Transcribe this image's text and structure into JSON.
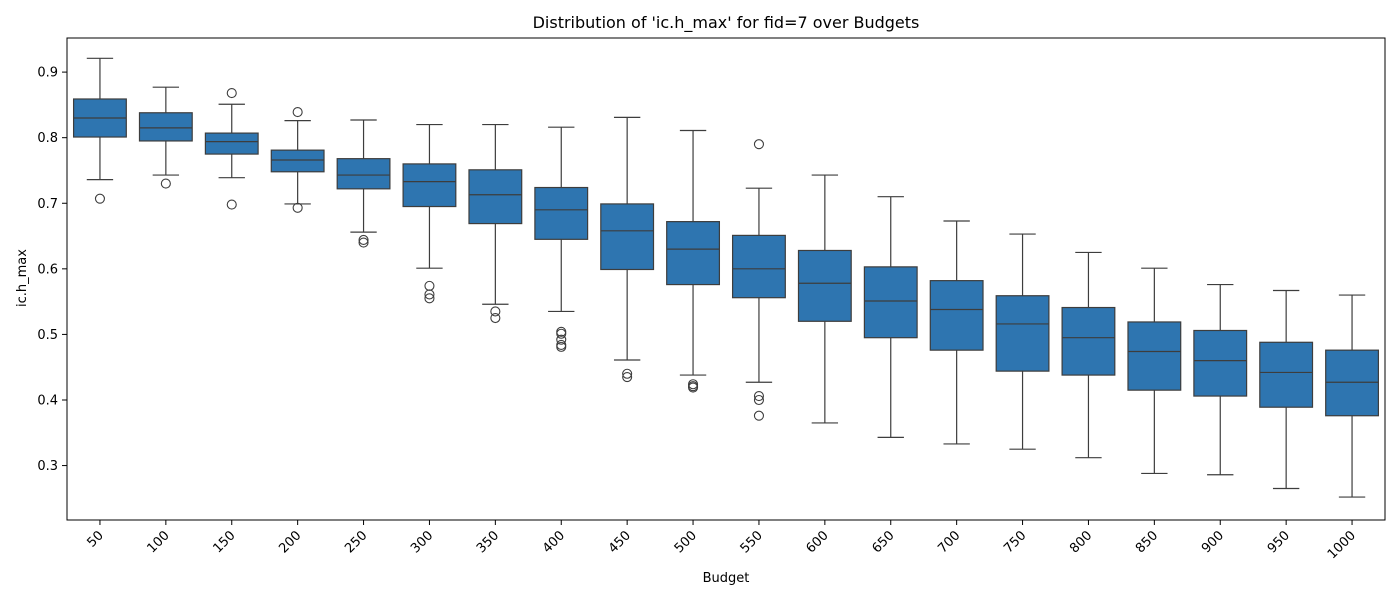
{
  "chart_data": {
    "type": "box",
    "title": "Distribution of 'ic.h_max' for fid=7 over Budgets",
    "xlabel": "Budget",
    "ylabel": "ic.h_max",
    "ylim": [
      0.217,
      0.952
    ],
    "yticks": [
      0.3,
      0.4,
      0.5,
      0.6,
      0.7,
      0.8,
      0.9
    ],
    "ytick_labels": [
      "0.3",
      "0.4",
      "0.5",
      "0.6",
      "0.7",
      "0.8",
      "0.9"
    ],
    "legend": "none",
    "grid": false,
    "color": "#2e75b0",
    "categories": [
      "50",
      "100",
      "150",
      "200",
      "250",
      "300",
      "350",
      "400",
      "450",
      "500",
      "550",
      "600",
      "650",
      "700",
      "750",
      "800",
      "850",
      "900",
      "950",
      "1000"
    ],
    "boxes": [
      {
        "whisker_low": 0.736,
        "q1": 0.801,
        "median": 0.83,
        "q3": 0.859,
        "whisker_high": 0.921,
        "outliers": [
          0.707
        ]
      },
      {
        "whisker_low": 0.743,
        "q1": 0.795,
        "median": 0.815,
        "q3": 0.838,
        "whisker_high": 0.877,
        "outliers": [
          0.73
        ]
      },
      {
        "whisker_low": 0.739,
        "q1": 0.775,
        "median": 0.794,
        "q3": 0.807,
        "whisker_high": 0.851,
        "outliers": [
          0.868,
          0.698
        ]
      },
      {
        "whisker_low": 0.699,
        "q1": 0.748,
        "median": 0.766,
        "q3": 0.781,
        "whisker_high": 0.826,
        "outliers": [
          0.839,
          0.693
        ]
      },
      {
        "whisker_low": 0.656,
        "q1": 0.722,
        "median": 0.743,
        "q3": 0.768,
        "whisker_high": 0.827,
        "outliers": [
          0.644,
          0.64
        ]
      },
      {
        "whisker_low": 0.601,
        "q1": 0.695,
        "median": 0.733,
        "q3": 0.76,
        "whisker_high": 0.82,
        "outliers": [
          0.574,
          0.561,
          0.555
        ]
      },
      {
        "whisker_low": 0.546,
        "q1": 0.669,
        "median": 0.713,
        "q3": 0.751,
        "whisker_high": 0.82,
        "outliers": [
          0.535,
          0.525
        ]
      },
      {
        "whisker_low": 0.535,
        "q1": 0.645,
        "median": 0.69,
        "q3": 0.724,
        "whisker_high": 0.816,
        "outliers": [
          0.504,
          0.501,
          0.492,
          0.484,
          0.481
        ]
      },
      {
        "whisker_low": 0.461,
        "q1": 0.599,
        "median": 0.658,
        "q3": 0.699,
        "whisker_high": 0.831,
        "outliers": [
          0.44,
          0.435
        ]
      },
      {
        "whisker_low": 0.438,
        "q1": 0.576,
        "median": 0.63,
        "q3": 0.672,
        "whisker_high": 0.811,
        "outliers": [
          0.424,
          0.421,
          0.419
        ]
      },
      {
        "whisker_low": 0.427,
        "q1": 0.556,
        "median": 0.6,
        "q3": 0.651,
        "whisker_high": 0.723,
        "outliers": [
          0.79,
          0.406,
          0.4,
          0.376
        ]
      },
      {
        "whisker_low": 0.365,
        "q1": 0.52,
        "median": 0.578,
        "q3": 0.628,
        "whisker_high": 0.743,
        "outliers": []
      },
      {
        "whisker_low": 0.343,
        "q1": 0.495,
        "median": 0.551,
        "q3": 0.603,
        "whisker_high": 0.71,
        "outliers": []
      },
      {
        "whisker_low": 0.333,
        "q1": 0.476,
        "median": 0.538,
        "q3": 0.582,
        "whisker_high": 0.673,
        "outliers": []
      },
      {
        "whisker_low": 0.325,
        "q1": 0.444,
        "median": 0.516,
        "q3": 0.559,
        "whisker_high": 0.653,
        "outliers": []
      },
      {
        "whisker_low": 0.312,
        "q1": 0.438,
        "median": 0.495,
        "q3": 0.541,
        "whisker_high": 0.625,
        "outliers": []
      },
      {
        "whisker_low": 0.288,
        "q1": 0.415,
        "median": 0.474,
        "q3": 0.519,
        "whisker_high": 0.601,
        "outliers": []
      },
      {
        "whisker_low": 0.286,
        "q1": 0.406,
        "median": 0.46,
        "q3": 0.506,
        "whisker_high": 0.576,
        "outliers": []
      },
      {
        "whisker_low": 0.265,
        "q1": 0.389,
        "median": 0.442,
        "q3": 0.488,
        "whisker_high": 0.567,
        "outliers": []
      },
      {
        "whisker_low": 0.252,
        "q1": 0.376,
        "median": 0.427,
        "q3": 0.476,
        "whisker_high": 0.56,
        "outliers": []
      }
    ]
  }
}
